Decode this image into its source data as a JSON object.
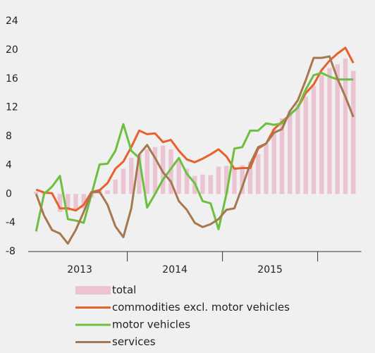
{
  "chart_data": {
    "type": "bar-line",
    "categories": [
      null,
      null,
      null,
      null,
      null,
      "2013",
      null,
      null,
      null,
      null,
      null,
      null,
      null,
      null,
      null,
      null,
      null,
      "2014",
      null,
      null,
      null,
      null,
      null,
      null,
      null,
      null,
      null,
      null,
      null,
      "2015",
      null,
      null,
      null,
      null,
      null,
      null,
      null,
      null,
      null,
      null,
      null
    ],
    "series": [
      {
        "name": "total",
        "kind": "bar",
        "color": "#ebc3d3",
        "values": [
          0.3,
          0.2,
          0,
          -2.5,
          -2.3,
          -2.2,
          -2,
          -0.5,
          0.7,
          0.5,
          2,
          3.5,
          5,
          5.5,
          6.2,
          6.5,
          6.7,
          6.2,
          4.8,
          3.5,
          2.5,
          2.7,
          2.6,
          3.8,
          3.9,
          3.7,
          4,
          4.5,
          5.5,
          7,
          9,
          10.5,
          11.5,
          12.5,
          13.5,
          15,
          16.5,
          17.5,
          18,
          18.8,
          17.1
        ]
      },
      {
        "name": "commodities excl. motor vehicles",
        "kind": "line",
        "color": "#e8602c",
        "values": [
          0.6,
          0.2,
          0.1,
          -2,
          -2,
          -2.3,
          -1.5,
          0.3,
          0.5,
          1.5,
          3.5,
          4.5,
          6.5,
          8.8,
          8.3,
          8.4,
          7.2,
          7.5,
          6,
          4.8,
          4.4,
          4.9,
          5.5,
          6.2,
          5.2,
          3.5,
          3.6,
          3.6,
          6.3,
          7,
          9,
          10,
          11,
          12,
          14,
          15.2,
          17.2,
          18.5,
          19.5,
          20.3,
          18.2
        ]
      },
      {
        "name": "motor vehicles",
        "kind": "line",
        "color": "#6cbf3f",
        "values": [
          -5.2,
          0,
          1,
          2.5,
          -3.5,
          -3.7,
          -4,
          0,
          4.1,
          4.2,
          6,
          9.7,
          6,
          5,
          -1.9,
          0,
          2,
          3.5,
          5,
          2.8,
          1.5,
          -1,
          -1.3,
          -4.9,
          0,
          6.3,
          6.5,
          8.8,
          8.8,
          9.8,
          9.6,
          9.8,
          11,
          12,
          14.5,
          16.5,
          16.8,
          16.3,
          15.9,
          15.9,
          15.9
        ]
      },
      {
        "name": "services",
        "kind": "line",
        "color": "#a6784f",
        "values": [
          0,
          -3,
          -5,
          -5.5,
          -6.9,
          -5,
          -2.5,
          0.2,
          0.3,
          -1.5,
          -4.5,
          -6,
          -2,
          5.5,
          6.8,
          5,
          3,
          1.7,
          -1,
          -2.2,
          -4,
          -4.6,
          -4.2,
          -3.5,
          -2.2,
          -2,
          1,
          4.2,
          6.5,
          7,
          8.5,
          9,
          11.5,
          13,
          15.8,
          18.9,
          18.9,
          19.1,
          16,
          13.5,
          10.7
        ]
      }
    ],
    "ylim": [
      -8,
      24
    ],
    "yticks": [
      -8,
      -4,
      0,
      4,
      8,
      12,
      16,
      20,
      24
    ],
    "grid": false
  }
}
